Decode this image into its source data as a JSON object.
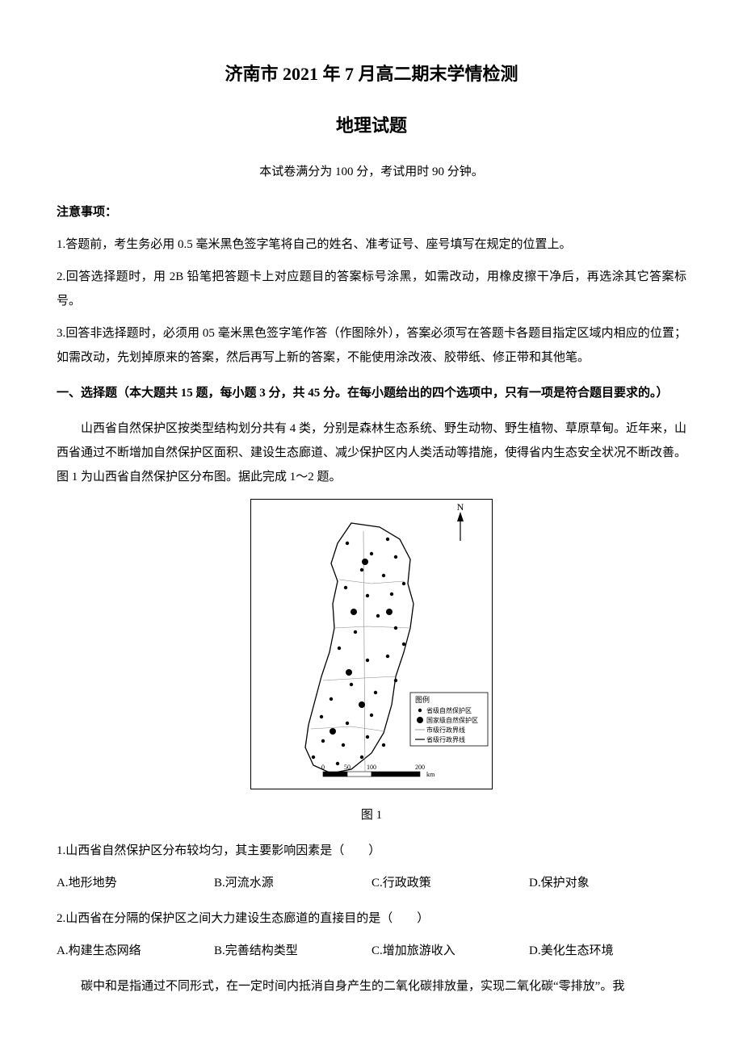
{
  "title_main": "济南市 2021 年 7 月高二期末学情检测",
  "title_sub": "地理试题",
  "exam_info": "本试卷满分为 100 分，考试用时 90 分钟。",
  "notice_head": "注意事项：",
  "notice_1": "1.答题前，考生务必用 0.5 毫米黑色签字笔将自己的姓名、准考证号、座号填写在规定的位置上。",
  "notice_2": "2.回答选择题时，用 2B 铅笔把答题卡上对应题目的答案标号涂黑，如需改动，用橡皮擦干净后，再选涂其它答案标号。",
  "notice_3": "3.回答非选择题时，必须用 05 毫米黑色签字笔作答（作图除外），答案必须写在答题卡各题目指定区域内相应的位置；如需改动，先划掉原来的答案，然后再写上新的答案，不能使用涂改液、胶带纸、修正带和其他笔。",
  "section_1": "一、选择题（本大题共 15 题，每小题 3 分，共 45 分。在每小题给出的四个选项中，只有一项是符合题目要求的。）",
  "passage_1": "山西省自然保护区按类型结构划分共有 4 类，分别是森林生态系统、野生动物、野生植物、草原草甸。近年来，山西省通过不断增加自然保护区面积、建设生态廊道、减少保护区内人类活动等措施，使得省内生态安全状况不断改善。图 1 为山西省自然保护区分布图。据此完成 1〜2 题。",
  "fig1_caption": "图 1",
  "fig1": {
    "legend_title": "图例",
    "legend_items": [
      "省级自然保护区",
      "国家级自然保护区",
      "市级行政界线",
      "省级行政界线"
    ],
    "scale_labels": [
      "0",
      "50",
      "100",
      "200"
    ],
    "scale_unit": "km",
    "compass": "N",
    "bg": "#ffffff",
    "border": "#000000",
    "dot_small_r": 2.2,
    "dot_large_r": 4.0,
    "province_dots": [
      [
        90,
        45
      ],
      [
        120,
        58
      ],
      [
        140,
        40
      ],
      [
        150,
        62
      ],
      [
        135,
        85
      ],
      [
        108,
        78
      ],
      [
        88,
        100
      ],
      [
        115,
        110
      ],
      [
        145,
        108
      ],
      [
        160,
        95
      ],
      [
        128,
        135
      ],
      [
        150,
        150
      ],
      [
        100,
        155
      ],
      [
        80,
        175
      ],
      [
        115,
        190
      ],
      [
        140,
        185
      ],
      [
        160,
        170
      ],
      [
        95,
        220
      ],
      [
        70,
        238
      ],
      [
        125,
        230
      ],
      [
        150,
        215
      ],
      [
        58,
        260
      ],
      [
        90,
        268
      ],
      [
        120,
        258
      ],
      [
        60,
        290
      ],
      [
        85,
        295
      ],
      [
        115,
        285
      ],
      [
        48,
        310
      ],
      [
        78,
        318
      ],
      [
        108,
        310
      ],
      [
        135,
        295
      ]
    ],
    "national_dots": [
      [
        112,
        68
      ],
      [
        98,
        130
      ],
      [
        142,
        130
      ],
      [
        108,
        245
      ],
      [
        72,
        278
      ],
      [
        92,
        205
      ]
    ]
  },
  "q1": {
    "stem": "1.山西省自然保护区分布较均匀，其主要影响因素是（　　）",
    "options": {
      "A": "A.地形地势",
      "B": "B.河流水源",
      "C": "C.行政政策",
      "D": "D.保护对象"
    }
  },
  "q2": {
    "stem": "2.山西省在分隔的保护区之间大力建设生态廊道的直接目的是（　　）",
    "options": {
      "A": "A.构建生态网络",
      "B": "B.完善结构类型",
      "C": "C.增加旅游收入",
      "D": "D.美化生态环境"
    }
  },
  "passage_2": "碳中和是指通过不同形式，在一定时间内抵消自身产生的二氧化碳排放量，实现二氧化碳“零排放”。我"
}
